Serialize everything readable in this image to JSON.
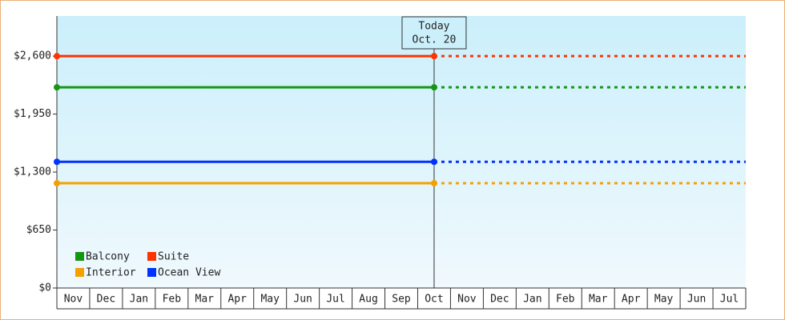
{
  "chart_data": {
    "type": "line",
    "categories": [
      "Nov",
      "Dec",
      "Jan",
      "Feb",
      "Mar",
      "Apr",
      "May",
      "Jun",
      "Jul",
      "Aug",
      "Sep",
      "Oct",
      "Nov",
      "Dec",
      "Jan",
      "Feb",
      "Mar",
      "Apr",
      "May",
      "Jun",
      "Jul"
    ],
    "series": [
      {
        "name": "Balcony",
        "color": "#149614",
        "value": 2250
      },
      {
        "name": "Suite",
        "color": "#ff3300",
        "value": 2600
      },
      {
        "name": "Interior",
        "color": "#f5a000",
        "value": 1175
      },
      {
        "name": "Ocean View",
        "color": "#0033ff",
        "value": 1415
      }
    ],
    "annotation": {
      "title": "Today",
      "date": "Oct. 20"
    },
    "ylim": [
      0,
      3050
    ],
    "yticks": [
      {
        "value": 0,
        "label": "$0"
      },
      {
        "value": 650,
        "label": "$650"
      },
      {
        "value": 1300,
        "label": "$1,300"
      },
      {
        "value": 1950,
        "label": "$1,950"
      },
      {
        "value": 2600,
        "label": "$2,600"
      }
    ]
  }
}
